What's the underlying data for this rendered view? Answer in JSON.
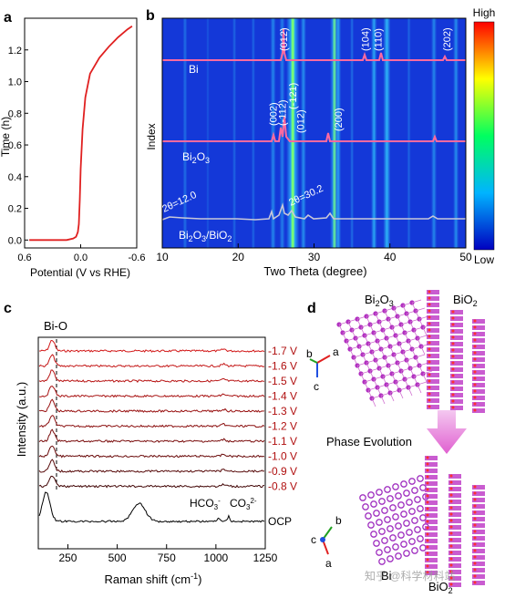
{
  "panels": {
    "a": {
      "label": "a",
      "ylabel": "Time (h)",
      "xlabel": "Potential (V vs RHE)",
      "yticks": [
        "0.0",
        "0.2",
        "0.4",
        "0.6",
        "0.8",
        "1.0",
        "1.2"
      ],
      "xticks": [
        "0.6",
        "0.0",
        "-0.6"
      ]
    },
    "b": {
      "label": "b",
      "ylabel": "Index",
      "xlabel": "Two Theta (degree)",
      "xticks": [
        "10",
        "20",
        "30",
        "40",
        "50"
      ],
      "colorbar_high": "High",
      "colorbar_low": "Low",
      "series_labels": [
        "Bi",
        "Bi2O3",
        "Bi2O3/BiO2"
      ],
      "peak_labels_bi": [
        "(012)",
        "(104)",
        "(110)",
        "(202)"
      ],
      "peak_labels_bi2o3": [
        "(002)",
        "(-112)",
        "(-121)",
        "(012)",
        "(200)"
      ],
      "annotation_1": "2θ=12.0",
      "annotation_2": "2θ=30.2"
    },
    "c": {
      "label": "c",
      "ylabel": "Intensity (a.u.)",
      "xlabel": "Raman shift (cm-1)",
      "xticks": [
        "250",
        "500",
        "750",
        "1000",
        "1250"
      ],
      "peak_label": "Bi-O",
      "hco3_label": "HCO3-",
      "co3_label": "CO32-",
      "traces": [
        "-1.7 V",
        "-1.6 V",
        "-1.5 V",
        "-1.4 V",
        "-1.3 V",
        "-1.2 V",
        "-1.1 V",
        "-1.0 V",
        "-0.9 V",
        "-0.8 V",
        "OCP"
      ]
    },
    "d": {
      "label": "d",
      "top_left": "Bi2O3",
      "top_right": "BiO2",
      "arrow_text": "Phase Evolution",
      "bottom_left": "Bi",
      "bottom_right": "BiO2",
      "axes_top": [
        "b",
        "a",
        "c"
      ],
      "axes_bottom": [
        "b",
        "c",
        "a"
      ]
    }
  },
  "watermark": "知乎 @科学材料站",
  "colors": {
    "red_curve": "#e02020",
    "pink_trace": "#ff6aa0",
    "heatmap_bg": "#1438d8",
    "raman_red": "#b01010",
    "atom_purple": "#b030c0"
  },
  "chart_data": [
    {
      "type": "line",
      "title": "",
      "xlabel": "Potential (V vs RHE)",
      "ylabel": "Time (h)",
      "xlim": [
        0.6,
        -0.6
      ],
      "ylim": [
        -0.05,
        1.4
      ],
      "series": [
        {
          "x": [
            0.55,
            0.3,
            0.15,
            0.08,
            0.05,
            0.03,
            0.02,
            0.01,
            0.0,
            -0.02,
            -0.05,
            -0.1,
            -0.2,
            -0.3,
            -0.4,
            -0.5,
            -0.55
          ],
          "y": [
            0.0,
            0.0,
            0.0,
            0.01,
            0.02,
            0.05,
            0.1,
            0.25,
            0.45,
            0.7,
            0.9,
            1.05,
            1.15,
            1.22,
            1.28,
            1.33,
            1.35
          ]
        }
      ]
    },
    {
      "type": "heatmap",
      "title": "",
      "xlabel": "Two Theta (degree)",
      "ylabel": "Index",
      "xlim": [
        10,
        50
      ],
      "peaks_2theta": [
        27.2,
        37.9,
        39.6,
        48.7,
        27.8,
        28.6,
        30.2,
        33.2,
        45.8,
        27.4,
        32.7,
        32.2
      ]
    },
    {
      "type": "line",
      "title": "",
      "xlabel": "Raman shift (cm-1)",
      "ylabel": "Intensity (a.u.)",
      "xlim": [
        100,
        1250
      ],
      "peaks_cm1": [
        160,
        610,
        1015,
        1065
      ]
    }
  ]
}
